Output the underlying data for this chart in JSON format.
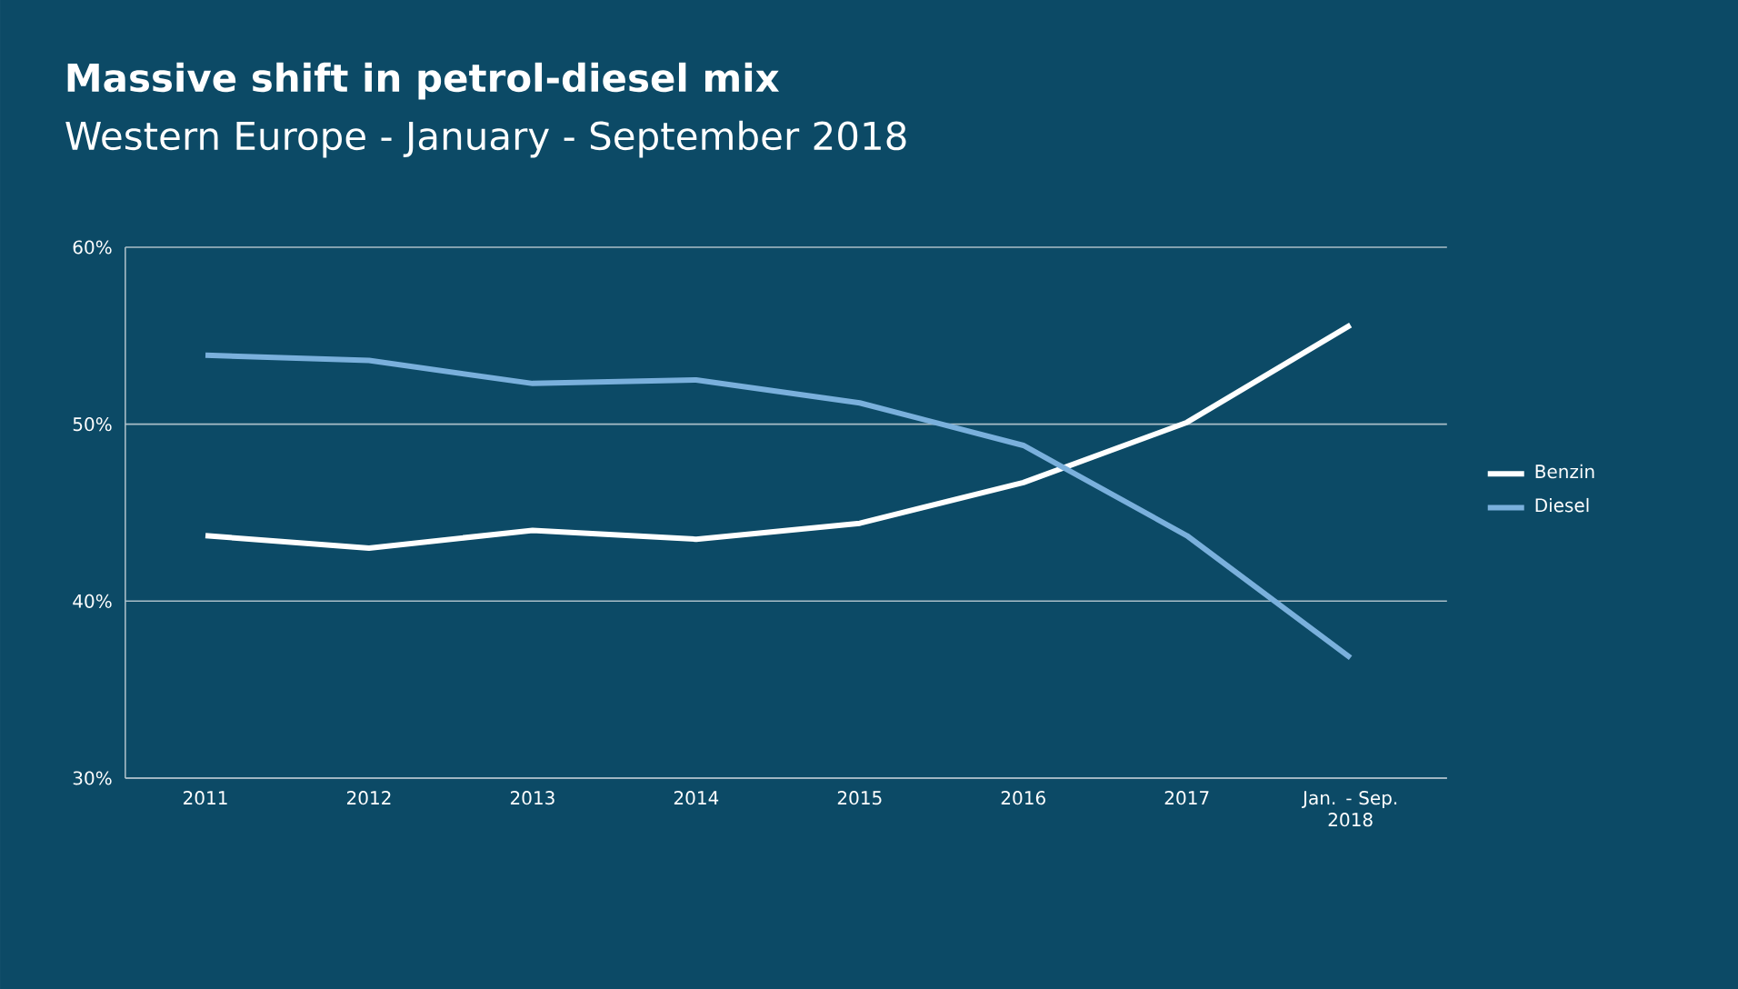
{
  "chart_data": {
    "type": "line",
    "title": "Massive shift in petrol-diesel mix",
    "subtitle": "Western Europe - January - September 2018",
    "categories": [
      "2011",
      "2012",
      "2013",
      "2014",
      "2015",
      "2016",
      "2017",
      "Jan. - Sep. 2018"
    ],
    "series": [
      {
        "name": "Benzin",
        "color": "#ffffff",
        "values": [
          43.7,
          43.0,
          44.0,
          43.5,
          44.4,
          46.7,
          50.1,
          55.6
        ]
      },
      {
        "name": "Diesel",
        "color": "#7ab0dc",
        "values": [
          53.9,
          53.6,
          52.3,
          52.5,
          51.2,
          48.8,
          43.7,
          36.8
        ]
      }
    ],
    "ylim": [
      30,
      60
    ],
    "yticks": [
      {
        "value": 30,
        "label": "30%"
      },
      {
        "value": 40,
        "label": "40%"
      },
      {
        "value": 50,
        "label": "50%"
      },
      {
        "value": 60,
        "label": "60%"
      }
    ],
    "grid": "y",
    "legend": "right",
    "marker": "none",
    "line_style": "solid"
  }
}
